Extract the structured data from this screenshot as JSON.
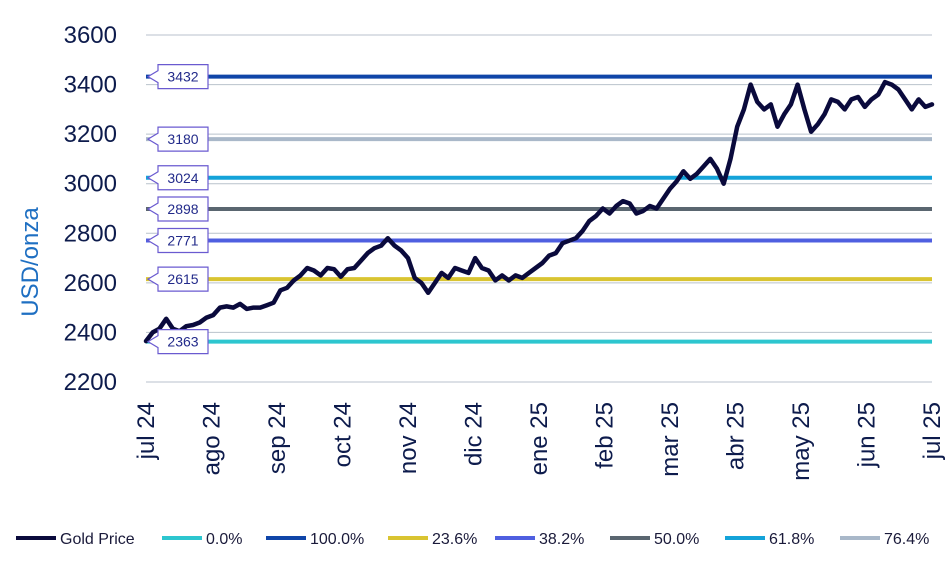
{
  "chart_data": {
    "type": "line",
    "ylabel": "USD/onza",
    "ylim": [
      2200,
      3600
    ],
    "yticks": [
      2200,
      2400,
      2600,
      2800,
      3000,
      3200,
      3400,
      3600
    ],
    "grid": "horizontal",
    "legend_position": "bottom",
    "x_tick_labels": [
      "jul 24",
      "ago 24",
      "sep 24",
      "oct 24",
      "nov 24",
      "dic 24",
      "ene 25",
      "feb 25",
      "mar 25",
      "abr 25",
      "may 25",
      "jun 25",
      "jul 25"
    ],
    "series": [
      {
        "name": "Gold Price",
        "color": "#0a0a3c",
        "values": [
          2365,
          2400,
          2415,
          2455,
          2415,
          2405,
          2425,
          2430,
          2440,
          2460,
          2470,
          2500,
          2505,
          2500,
          2515,
          2495,
          2500,
          2500,
          2510,
          2520,
          2570,
          2580,
          2610,
          2630,
          2660,
          2650,
          2630,
          2660,
          2655,
          2625,
          2655,
          2660,
          2690,
          2720,
          2740,
          2750,
          2780,
          2750,
          2730,
          2700,
          2620,
          2600,
          2560,
          2600,
          2640,
          2620,
          2660,
          2650,
          2640,
          2700,
          2660,
          2650,
          2610,
          2630,
          2610,
          2630,
          2620,
          2640,
          2660,
          2680,
          2710,
          2720,
          2760,
          2770,
          2780,
          2810,
          2850,
          2870,
          2900,
          2880,
          2910,
          2930,
          2920,
          2880,
          2890,
          2910,
          2900,
          2940,
          2980,
          3010,
          3050,
          3020,
          3040,
          3070,
          3100,
          3060,
          3000,
          3100,
          3230,
          3300,
          3400,
          3330,
          3300,
          3320,
          3230,
          3280,
          3320,
          3400,
          3300,
          3210,
          3240,
          3280,
          3340,
          3330,
          3300,
          3340,
          3350,
          3310,
          3340,
          3360,
          3410,
          3400,
          3380,
          3340,
          3300,
          3340,
          3310,
          3320
        ],
        "width": 4.5
      }
    ],
    "levels": [
      {
        "name": "0.0%",
        "value": 2363,
        "label": "2363",
        "color": "#2dc6cf"
      },
      {
        "name": "100.0%",
        "value": 3432,
        "label": "3432",
        "color": "#0f45a8"
      },
      {
        "name": "23.6%",
        "value": 2615,
        "label": "2615",
        "color": "#d9c431"
      },
      {
        "name": "38.2%",
        "value": 2771,
        "label": "2771",
        "color": "#4f5fe0"
      },
      {
        "name": "50.0%",
        "value": 2898,
        "label": "2898",
        "color": "#5a6670"
      },
      {
        "name": "61.8%",
        "value": 3024,
        "label": "3024",
        "color": "#14a3d9"
      },
      {
        "name": "76.4%",
        "value": 3180,
        "label": "3180",
        "color": "#a9b8c9"
      }
    ],
    "legend": [
      {
        "label": "Gold Price",
        "color": "#0a0a3c"
      },
      {
        "label": "0.0%",
        "color": "#2dc6cf"
      },
      {
        "label": "100.0%",
        "color": "#0f45a8"
      },
      {
        "label": "23.6%",
        "color": "#d9c431"
      },
      {
        "label": "38.2%",
        "color": "#4f5fe0"
      },
      {
        "label": "50.0%",
        "color": "#5a6670"
      },
      {
        "label": "61.8%",
        "color": "#14a3d9"
      },
      {
        "label": "76.4%",
        "color": "#a9b8c9"
      }
    ]
  }
}
